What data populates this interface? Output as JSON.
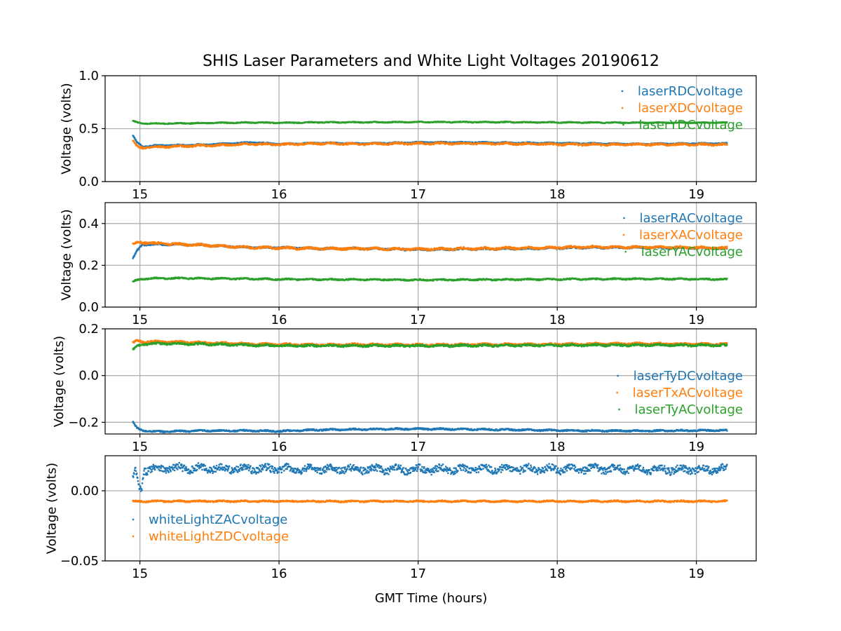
{
  "figure": {
    "title": "SHIS Laser Parameters and White Light Voltages 20190612",
    "xlabel": "GMT Time (hours)",
    "colors": {
      "blue": "#1f77b4",
      "orange": "#ff7f0e",
      "green": "#2ca02c",
      "grid": "#b0b0b0",
      "axis": "#000000"
    }
  },
  "chart_data": [
    {
      "type": "scatter",
      "ylabel": "Voltage (volts)",
      "xlim": [
        14.75,
        19.43
      ],
      "ylim": [
        0.0,
        1.0
      ],
      "xticks": [
        15,
        16,
        17,
        18,
        19
      ],
      "xtick_labels": [
        "15",
        "16",
        "17",
        "18",
        "19"
      ],
      "yticks": [
        0.0,
        0.5,
        1.0
      ],
      "ytick_labels": [
        "0.0",
        "0.5",
        "1.0"
      ],
      "legend_loc": "upper right",
      "series": [
        {
          "name": "laserRDCvoltage",
          "color": "#1f77b4",
          "noise": 0.005,
          "x": [
            14.95,
            14.98,
            15.02,
            15.1,
            15.3,
            15.5,
            15.8,
            16.0,
            16.3,
            16.6,
            17.0,
            17.4,
            17.8,
            18.2,
            18.6,
            19.0,
            19.22
          ],
          "y": [
            0.43,
            0.37,
            0.33,
            0.34,
            0.345,
            0.35,
            0.37,
            0.355,
            0.365,
            0.36,
            0.37,
            0.37,
            0.365,
            0.36,
            0.355,
            0.36,
            0.36
          ]
        },
        {
          "name": "laserXDCvoltage",
          "color": "#ff7f0e",
          "noise": 0.008,
          "x": [
            14.95,
            14.98,
            15.02,
            15.1,
            15.3,
            15.5,
            15.8,
            16.0,
            16.3,
            16.6,
            17.0,
            17.4,
            17.8,
            18.2,
            18.6,
            19.0,
            19.22
          ],
          "y": [
            0.38,
            0.33,
            0.32,
            0.325,
            0.335,
            0.34,
            0.355,
            0.35,
            0.36,
            0.355,
            0.36,
            0.36,
            0.355,
            0.35,
            0.35,
            0.35,
            0.35
          ]
        },
        {
          "name": "laserYDCvoltage",
          "color": "#2ca02c",
          "noise": 0.004,
          "x": [
            14.95,
            14.98,
            15.02,
            15.1,
            15.3,
            15.5,
            15.8,
            16.0,
            16.3,
            16.6,
            17.0,
            17.4,
            17.8,
            18.2,
            18.6,
            19.0,
            19.22
          ],
          "y": [
            0.57,
            0.56,
            0.55,
            0.548,
            0.55,
            0.553,
            0.558,
            0.555,
            0.56,
            0.56,
            0.562,
            0.562,
            0.56,
            0.558,
            0.556,
            0.556,
            0.556
          ]
        }
      ]
    },
    {
      "type": "scatter",
      "ylabel": "Voltage (volts)",
      "xlim": [
        14.75,
        19.43
      ],
      "ylim": [
        0.0,
        0.5
      ],
      "xticks": [
        15,
        16,
        17,
        18,
        19
      ],
      "xtick_labels": [
        "15",
        "16",
        "17",
        "18",
        "19"
      ],
      "yticks": [
        0.0,
        0.2,
        0.4
      ],
      "ytick_labels": [
        "0.0",
        "0.2",
        "0.4"
      ],
      "legend_loc": "upper right",
      "series": [
        {
          "name": "laserRACvoltage",
          "color": "#1f77b4",
          "noise": 0.004,
          "x": [
            14.95,
            14.98,
            15.02,
            15.1,
            15.3,
            15.5,
            15.8,
            16.0,
            16.3,
            16.6,
            17.0,
            17.4,
            17.8,
            18.2,
            18.6,
            19.0,
            19.22
          ],
          "y": [
            0.23,
            0.27,
            0.3,
            0.3,
            0.3,
            0.295,
            0.285,
            0.285,
            0.28,
            0.28,
            0.275,
            0.278,
            0.28,
            0.285,
            0.285,
            0.283,
            0.28
          ]
        },
        {
          "name": "laserXACvoltage",
          "color": "#ff7f0e",
          "noise": 0.005,
          "x": [
            14.95,
            14.98,
            15.02,
            15.1,
            15.3,
            15.5,
            15.8,
            16.0,
            16.3,
            16.6,
            17.0,
            17.4,
            17.8,
            18.2,
            18.6,
            19.0,
            19.22
          ],
          "y": [
            0.3,
            0.31,
            0.31,
            0.305,
            0.3,
            0.295,
            0.285,
            0.283,
            0.28,
            0.28,
            0.277,
            0.28,
            0.283,
            0.287,
            0.287,
            0.285,
            0.282
          ]
        },
        {
          "name": "laserYACvoltage",
          "color": "#2ca02c",
          "noise": 0.003,
          "x": [
            14.95,
            14.98,
            15.02,
            15.1,
            15.3,
            15.5,
            15.8,
            16.0,
            16.3,
            16.6,
            17.0,
            17.4,
            17.8,
            18.2,
            18.6,
            19.0,
            19.22
          ],
          "y": [
            0.12,
            0.13,
            0.135,
            0.138,
            0.138,
            0.137,
            0.135,
            0.133,
            0.132,
            0.132,
            0.13,
            0.131,
            0.132,
            0.134,
            0.135,
            0.134,
            0.133
          ]
        }
      ]
    },
    {
      "type": "scatter",
      "ylabel": "Voltage (volts)",
      "xlim": [
        14.75,
        19.43
      ],
      "ylim": [
        -0.25,
        0.2
      ],
      "xticks": [
        15,
        16,
        17,
        18,
        19
      ],
      "xtick_labels": [
        "15",
        "16",
        "17",
        "18",
        "19"
      ],
      "yticks": [
        -0.2,
        0.0,
        0.2
      ],
      "ytick_labels": [
        "−0.2",
        "0.0",
        "0.2"
      ],
      "legend_loc": "center right",
      "series": [
        {
          "name": "laserTyDCvoltage",
          "color": "#1f77b4",
          "noise": 0.003,
          "x": [
            14.95,
            14.98,
            15.02,
            15.1,
            15.3,
            15.5,
            15.8,
            16.0,
            16.3,
            16.6,
            17.0,
            17.4,
            17.8,
            18.2,
            18.6,
            19.0,
            19.22
          ],
          "y": [
            -0.2,
            -0.225,
            -0.235,
            -0.24,
            -0.238,
            -0.236,
            -0.236,
            -0.238,
            -0.232,
            -0.23,
            -0.228,
            -0.23,
            -0.233,
            -0.236,
            -0.237,
            -0.235,
            -0.235
          ]
        },
        {
          "name": "laserTxACvoltage",
          "color": "#ff7f0e",
          "noise": 0.004,
          "x": [
            14.95,
            14.98,
            15.02,
            15.1,
            15.3,
            15.5,
            15.8,
            16.0,
            16.3,
            16.6,
            17.0,
            17.4,
            17.8,
            18.2,
            18.6,
            19.0,
            19.22
          ],
          "y": [
            0.14,
            0.148,
            0.145,
            0.145,
            0.143,
            0.14,
            0.135,
            0.133,
            0.132,
            0.133,
            0.131,
            0.133,
            0.133,
            0.135,
            0.136,
            0.135,
            0.134
          ]
        },
        {
          "name": "laserTyACvoltage",
          "color": "#2ca02c",
          "noise": 0.004,
          "x": [
            14.95,
            14.98,
            15.02,
            15.1,
            15.3,
            15.5,
            15.8,
            16.0,
            16.3,
            16.6,
            17.0,
            17.4,
            17.8,
            18.2,
            18.6,
            19.0,
            19.22
          ],
          "y": [
            0.11,
            0.125,
            0.135,
            0.137,
            0.136,
            0.134,
            0.13,
            0.128,
            0.127,
            0.128,
            0.127,
            0.128,
            0.129,
            0.13,
            0.13,
            0.13,
            0.129
          ]
        }
      ]
    },
    {
      "type": "scatter",
      "ylabel": "Voltage (volts)",
      "xlabel": "GMT Time (hours)",
      "xlim": [
        14.75,
        19.43
      ],
      "ylim": [
        -0.05,
        0.025
      ],
      "xticks": [
        15,
        16,
        17,
        18,
        19
      ],
      "xtick_labels": [
        "15",
        "16",
        "17",
        "18",
        "19"
      ],
      "yticks": [
        -0.05,
        0.0
      ],
      "ytick_labels": [
        "−0.05",
        "0.00"
      ],
      "legend_loc": "lower left",
      "series": [
        {
          "name": "whiteLightZACvoltage",
          "color": "#1f77b4",
          "noise": 0.0025,
          "x": [
            14.95,
            14.97,
            14.99,
            15.01,
            15.03,
            15.1,
            15.5,
            16.0,
            16.5,
            17.0,
            17.5,
            18.0,
            18.5,
            19.0,
            19.22
          ],
          "y": [
            0.008,
            0.014,
            0.003,
            0.0,
            0.015,
            0.016,
            0.016,
            0.0155,
            0.0155,
            0.015,
            0.0155,
            0.0155,
            0.0155,
            0.015,
            0.0155
          ]
        },
        {
          "name": "whiteLightZDCvoltage",
          "color": "#ff7f0e",
          "noise": 0.0005,
          "x": [
            14.95,
            15.5,
            16.0,
            16.5,
            17.0,
            17.5,
            18.0,
            18.5,
            19.0,
            19.22
          ],
          "y": [
            -0.0075,
            -0.0075,
            -0.0075,
            -0.0075,
            -0.0075,
            -0.0075,
            -0.0075,
            -0.0075,
            -0.0075,
            -0.0075
          ]
        }
      ]
    }
  ]
}
